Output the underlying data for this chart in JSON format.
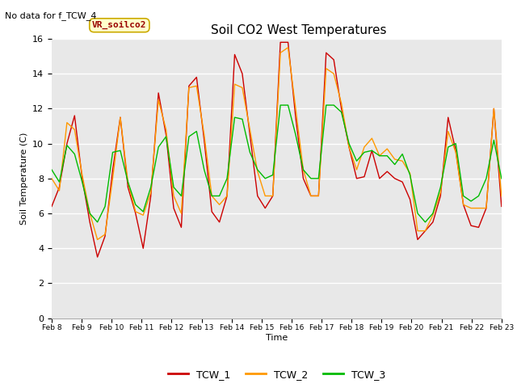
{
  "title": "Soil CO2 West Temperatures",
  "subtitle": "No data for f_TCW_4",
  "ylabel": "Soil Temperature (C)",
  "xlabel": "Time",
  "ylim": [
    0,
    16
  ],
  "legend_labels": [
    "TCW_1",
    "TCW_2",
    "TCW_3"
  ],
  "line_colors": [
    "#cc0000",
    "#ff9900",
    "#00bb00"
  ],
  "annotation_text": "VR_soilco2",
  "annotation_box_color": "#ffffcc",
  "annotation_text_color": "#990000",
  "x_tick_labels": [
    "Feb 8",
    "Feb 9",
    "Feb 10",
    "Feb 11",
    "Feb 12",
    "Feb 13",
    "Feb 14",
    "Feb 15",
    "Feb 16",
    "Feb 17",
    "Feb 18",
    "Feb 19",
    "Feb 20",
    "Feb 21",
    "Feb 22",
    "Feb 23"
  ],
  "TCW_1": [
    6.4,
    7.5,
    10.0,
    11.6,
    8.0,
    5.5,
    3.5,
    4.7,
    8.5,
    11.5,
    7.5,
    6.0,
    4.0,
    7.0,
    12.9,
    10.5,
    6.3,
    5.2,
    13.3,
    13.8,
    10.2,
    6.1,
    5.5,
    7.0,
    15.1,
    14.0,
    10.5,
    7.0,
    6.3,
    7.0,
    15.8,
    15.8,
    11.5,
    8.0,
    7.0,
    7.0,
    15.2,
    14.8,
    12.0,
    9.8,
    8.0,
    8.1,
    9.6,
    8.0,
    8.4,
    8.0,
    7.8,
    6.8,
    4.5,
    5.0,
    5.5,
    7.0,
    11.5,
    9.6,
    6.5,
    5.3,
    5.2,
    6.3,
    12.0,
    6.4
  ],
  "TCW_2": [
    8.0,
    7.3,
    11.2,
    10.8,
    8.2,
    6.0,
    4.5,
    4.8,
    8.0,
    11.5,
    7.8,
    6.1,
    5.9,
    7.2,
    12.5,
    10.8,
    7.0,
    6.0,
    13.2,
    13.3,
    10.5,
    7.0,
    6.5,
    7.0,
    13.4,
    13.2,
    10.8,
    8.4,
    7.0,
    7.0,
    15.2,
    15.5,
    12.0,
    8.5,
    7.0,
    7.0,
    14.3,
    14.0,
    12.3,
    9.8,
    8.5,
    9.8,
    10.3,
    9.3,
    9.7,
    9.1,
    9.0,
    8.3,
    5.0,
    5.0,
    5.9,
    7.2,
    10.7,
    9.5,
    6.5,
    6.3,
    6.3,
    6.3,
    12.0,
    7.0
  ],
  "TCW_3": [
    8.5,
    7.8,
    9.9,
    9.4,
    7.8,
    6.0,
    5.5,
    6.4,
    9.5,
    9.6,
    7.8,
    6.5,
    6.1,
    7.5,
    9.8,
    10.4,
    7.5,
    7.0,
    10.4,
    10.7,
    8.5,
    7.0,
    7.0,
    8.0,
    11.5,
    11.4,
    9.5,
    8.5,
    8.0,
    8.2,
    12.2,
    12.2,
    10.5,
    8.5,
    8.0,
    8.0,
    12.2,
    12.2,
    11.8,
    10.0,
    9.0,
    9.5,
    9.6,
    9.3,
    9.3,
    8.8,
    9.4,
    8.2,
    6.0,
    5.5,
    6.0,
    7.5,
    9.8,
    10.0,
    7.0,
    6.7,
    7.0,
    8.0,
    10.2,
    8.0
  ]
}
